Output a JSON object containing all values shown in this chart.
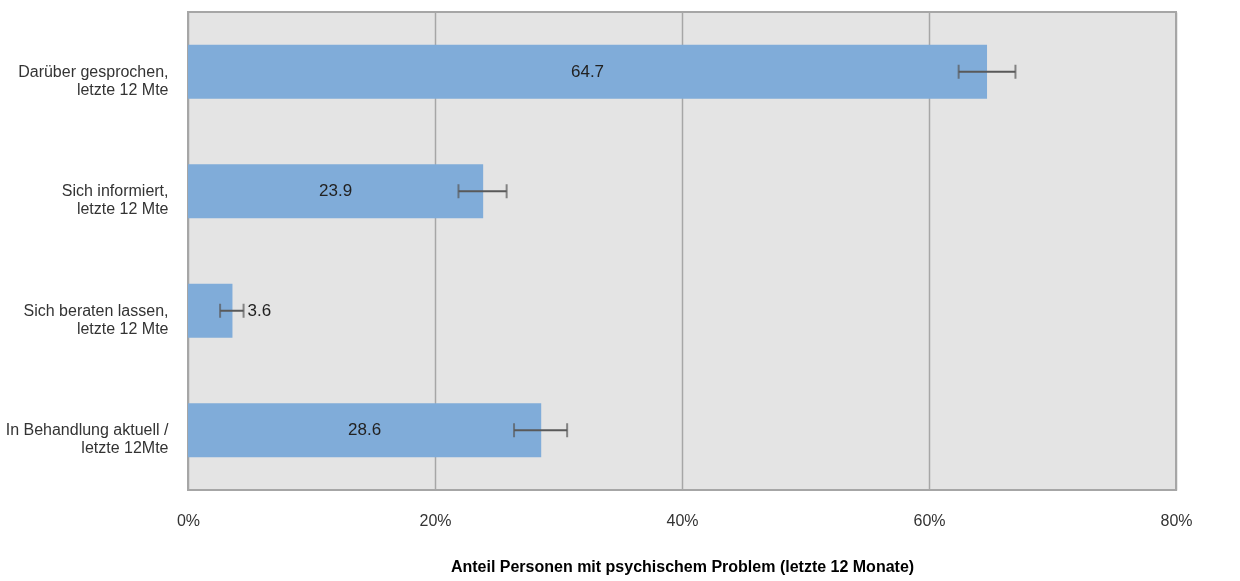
{
  "chart_data": {
    "type": "bar",
    "orientation": "horizontal",
    "xlabel": "Anteil Personen mit psychischem Problem (letzte 12 Monate)",
    "categories": [
      "Darüber gesprochen,\nletzte 12 Mte",
      "Sich informiert,\nletzte 12 Mte",
      "Sich beraten lassen,\nletzte 12 Mte",
      "In Behandlung aktuell /\nletzte 12Mte"
    ],
    "values": [
      64.7,
      23.9,
      3.6,
      28.6
    ],
    "errors": [
      [
        62.4,
        67.0
      ],
      [
        21.9,
        25.8
      ],
      [
        2.6,
        4.5
      ],
      [
        26.4,
        30.7
      ]
    ],
    "color": "#80acd9",
    "xlim": [
      0,
      80
    ],
    "xticks": [
      {
        "value": 0,
        "label": "0%"
      },
      {
        "value": 20,
        "label": "20%"
      },
      {
        "value": 40,
        "label": "40%"
      },
      {
        "value": 60,
        "label": "60%"
      },
      {
        "value": 80,
        "label": "80%"
      }
    ],
    "grid": "x",
    "data_labels": true
  }
}
